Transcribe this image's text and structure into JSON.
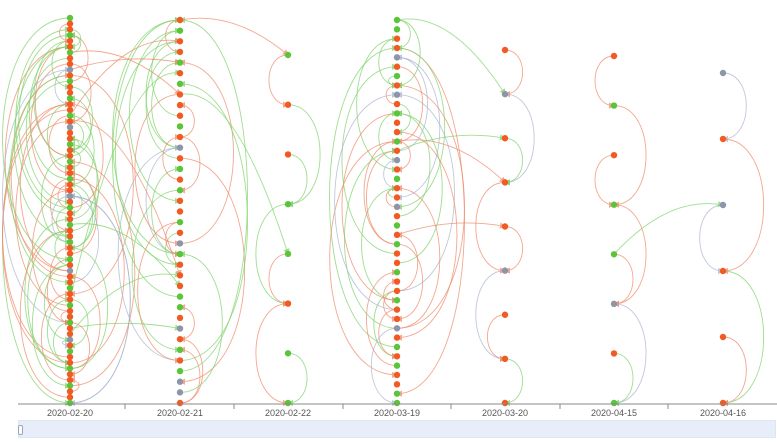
{
  "colors": {
    "orange": "#f15a22",
    "green": "#5ac53a",
    "gray": "#8c96a8",
    "edge_orange": "#f08a6a",
    "edge_green": "#7fd36a",
    "edge_gray": "#a9b6cf",
    "axis": "#888888"
  },
  "chart_data": {
    "type": "scatter",
    "subtype": "arc-diagram timeline",
    "categories": [
      "2020-02-20",
      "2020-02-21",
      "2020-02-22",
      "2020-03-19",
      "2020-03-20",
      "2020-04-15",
      "2020-04-16"
    ],
    "series": [
      {
        "date": "2020-02-20",
        "nodes": [
          "g",
          "o",
          "o",
          "g",
          "o",
          "o",
          "g",
          "o",
          "o",
          "gr",
          "o",
          "g",
          "o",
          "o",
          "g",
          "o",
          "o",
          "g",
          "o",
          "gr",
          "o",
          "o",
          "g",
          "o",
          "o",
          "g",
          "o",
          "o",
          "g",
          "o",
          "o",
          "gr",
          "o",
          "g",
          "o",
          "o",
          "g",
          "o",
          "o",
          "g",
          "o",
          "o",
          "g",
          "o",
          "gr",
          "o",
          "o",
          "g",
          "o",
          "o",
          "g",
          "o",
          "o",
          "g",
          "o",
          "o",
          "gr",
          "o",
          "g",
          "o",
          "o",
          "g",
          "o",
          "o",
          "g",
          "o",
          "o",
          "g"
        ]
      },
      {
        "date": "2020-02-21",
        "nodes": [
          "o",
          "g",
          "o",
          "o",
          "g",
          "o",
          "g",
          "o",
          "o",
          "o",
          "g",
          "o",
          "gr",
          "o",
          "g",
          "o",
          "g",
          "o",
          "o",
          "g",
          "o",
          "gr",
          "g",
          "o",
          "o",
          "o",
          "g",
          "g",
          "o",
          "gr",
          "o",
          "g",
          "o",
          "g",
          "gr",
          "gr",
          "o"
        ]
      },
      {
        "date": "2020-02-22",
        "nodes": [
          "g",
          "o",
          "o",
          "g",
          "g",
          "o",
          "g",
          "g"
        ]
      },
      {
        "date": "2020-03-19",
        "nodes": [
          "g",
          "g",
          "o",
          "o",
          "gr",
          "o",
          "g",
          "o",
          "gr",
          "o",
          "g",
          "o",
          "o",
          "g",
          "o",
          "gr",
          "o",
          "g",
          "o",
          "o",
          "gr",
          "o",
          "g",
          "o",
          "g",
          "o",
          "o",
          "g",
          "o",
          "o",
          "g",
          "o",
          "o",
          "gr",
          "o",
          "g",
          "o",
          "g",
          "o",
          "o",
          "g",
          "g"
        ]
      },
      {
        "date": "2020-03-20",
        "nodes": [
          "o",
          "gr",
          "o",
          "o",
          "o",
          "gr",
          "o",
          "o",
          "o"
        ]
      },
      {
        "date": "2020-04-15",
        "nodes": [
          "o",
          "g",
          "o",
          "g",
          "g",
          "gr",
          "o",
          "g"
        ]
      },
      {
        "date": "2020-04-16",
        "nodes": [
          "gr",
          "o",
          "gr",
          "o",
          "o",
          "o"
        ]
      }
    ],
    "legend_key": {
      "o": "orange",
      "g": "green",
      "gr": "gray"
    },
    "grid": false,
    "legend": "none"
  }
}
